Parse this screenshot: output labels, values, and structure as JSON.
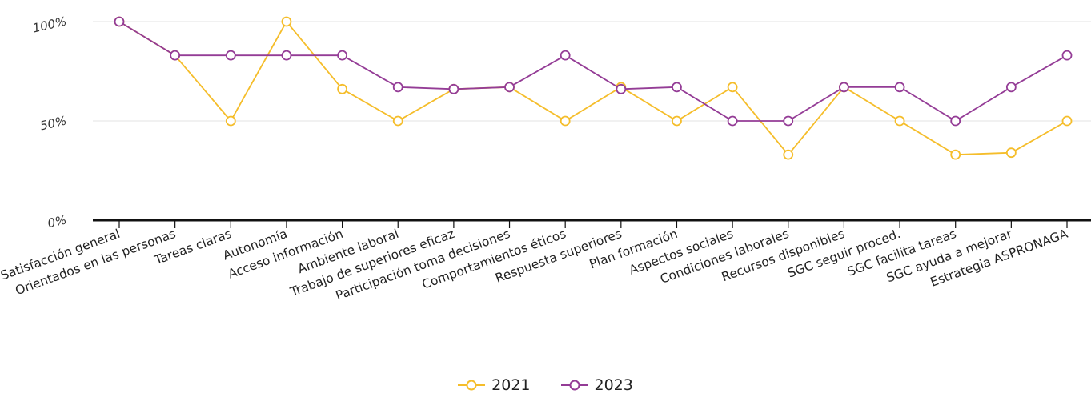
{
  "chart_data": {
    "type": "line",
    "title": "",
    "xlabel": "",
    "ylabel": "",
    "categories": [
      "Satisfacción general",
      "Orientados en las personas",
      "Tareas claras",
      "Autonomía",
      "Acceso información",
      "Ambiente laboral",
      "Trabajo de superiores eficaz",
      "Participación toma decisiones",
      "Comportamientos éticos",
      "Respuesta superiores",
      "Plan formación",
      "Aspectos sociales",
      "Condiciones laborales",
      "Recursos disponibles",
      "SGC seguir proced.",
      "SGC facilita tareas",
      "SGC ayuda a mejorar",
      "Estrategia ASPRONAGA"
    ],
    "y_ticks": [
      "0%",
      "50%",
      "100%"
    ],
    "ylim": [
      0,
      100
    ],
    "grid": true,
    "legend_position": "bottom",
    "series": [
      {
        "name": "2021",
        "color": "#F5BD2A",
        "values": [
          100,
          83,
          50,
          100,
          66,
          50,
          66,
          67,
          50,
          67,
          50,
          67,
          33,
          67,
          50,
          33,
          34,
          50
        ]
      },
      {
        "name": "2023",
        "color": "#943C96",
        "values": [
          100,
          83,
          83,
          83,
          83,
          67,
          66,
          67,
          83,
          66,
          67,
          50,
          50,
          67,
          67,
          50,
          67,
          83
        ]
      }
    ]
  }
}
